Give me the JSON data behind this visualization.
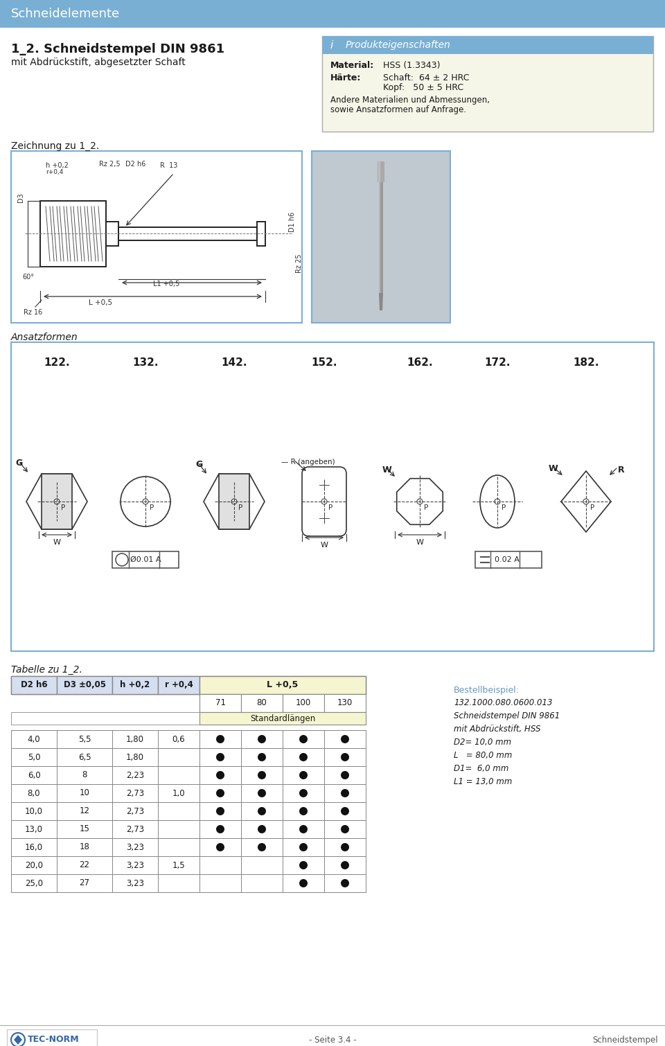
{
  "title_bar_color": "#7aafd4",
  "title_bar_text": "Schneidelemente",
  "section1_title": "1_2. Schneidstempel DIN 9861",
  "section1_subtitle": "mit Abdrückstift, abgesetzter Schaft",
  "info_box_header_text": "Produkteigenschaften",
  "info_label1": "Material:",
  "info_val1": "HSS (1.3343)",
  "info_label2": "Härte:",
  "info_val2a": "Schaft:  64 ± 2 HRC",
  "info_val2b": "Kopf:   50 ± 5 HRC",
  "info_text3a": "Andere Materialien und Abmessungen,",
  "info_text3b": "sowie Ansatzformen auf Anfrage.",
  "zeichnung_label": "Zeichnung zu 1_2.",
  "ansatzformen_label": "Ansatzformen",
  "ansatz_types": [
    "122.",
    "132.",
    "142.",
    "152.",
    "162.",
    "172.",
    "182."
  ],
  "tabelle_label": "Tabelle zu 1_2.",
  "table_data": [
    [
      "4,0",
      "5,5",
      "1,80",
      "0,6",
      true,
      true,
      true,
      true
    ],
    [
      "5,0",
      "6,5",
      "1,80",
      "",
      true,
      true,
      true,
      true
    ],
    [
      "6,0",
      "8",
      "2,23",
      "",
      true,
      true,
      true,
      true
    ],
    [
      "8,0",
      "10",
      "2,73",
      "1,0",
      true,
      true,
      true,
      true
    ],
    [
      "10,0",
      "12",
      "2,73",
      "",
      true,
      true,
      true,
      true
    ],
    [
      "13,0",
      "15",
      "2,73",
      "",
      true,
      true,
      true,
      true
    ],
    [
      "16,0",
      "18",
      "3,23",
      "",
      true,
      true,
      true,
      true
    ],
    [
      "20,0",
      "22",
      "3,23",
      "1,5",
      false,
      false,
      true,
      true
    ],
    [
      "25,0",
      "27",
      "3,23",
      "",
      false,
      false,
      true,
      true
    ]
  ],
  "bestell_label": "Bestellbeispiel:",
  "bestell_lines": [
    "132.1000.080.0600.013",
    "Schneidstempel DIN 9861",
    "mit Abdrückstift, HSS",
    "D2= 10,0 mm",
    "L   = 80,0 mm",
    "D1=  6,0 mm",
    "L1 = 13,0 mm"
  ],
  "footer_text": "- Seite 3.4 -",
  "footer_right": "Schneidstempel",
  "blue": "#7aafd4",
  "dark": "#1a1a1a",
  "th_bg": "#d4dff0",
  "tl_bg": "#f5f5d0"
}
